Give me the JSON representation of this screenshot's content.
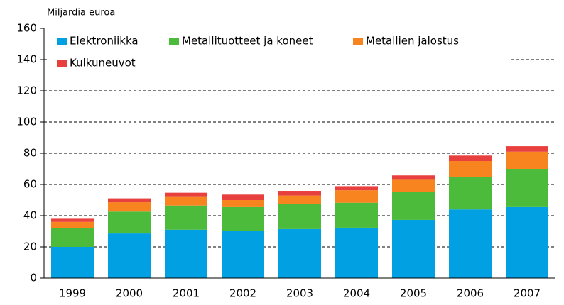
{
  "chart_data": {
    "type": "stacked-bar",
    "y_axis_label": "Miljardia euroa",
    "categories": [
      "1999",
      "2000",
      "2001",
      "2002",
      "2003",
      "2004",
      "2005",
      "2006",
      "2007"
    ],
    "series": [
      {
        "name": "Elektroniikka",
        "color": "#00a0e2",
        "values": [
          20,
          28.6,
          31,
          30,
          31.4,
          32.3,
          37.3,
          44,
          45.5
        ]
      },
      {
        "name": "Metallituotteet ja koneet",
        "color": "#4cbb3c",
        "values": [
          12,
          14,
          15.5,
          15.5,
          16,
          16,
          17.7,
          21,
          24.5
        ]
      },
      {
        "name": "Metallien jalostus",
        "color": "#f7841f",
        "values": [
          4,
          6,
          5.5,
          4.5,
          5.5,
          8,
          8,
          10,
          11
        ]
      },
      {
        "name": "Kulkuneuvot",
        "color": "#e8403e",
        "values": [
          2,
          2.5,
          2.7,
          3.5,
          3,
          2.6,
          2.8,
          3.5,
          3.5
        ]
      }
    ],
    "ylim": [
      0,
      160
    ],
    "yticks": [
      0,
      20,
      40,
      60,
      80,
      100,
      120,
      140,
      160
    ],
    "grid": true
  }
}
